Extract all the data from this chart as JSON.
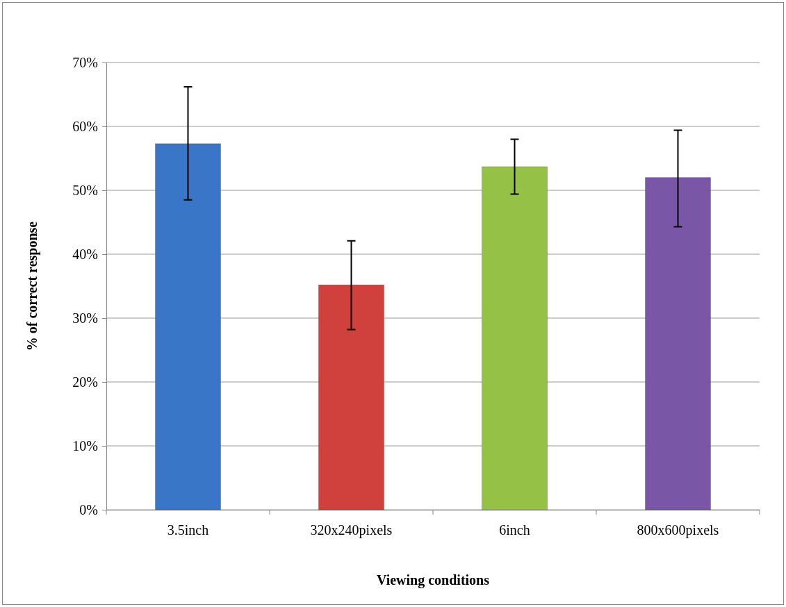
{
  "chart_data": {
    "type": "bar",
    "xlabel": "Viewing conditions",
    "ylabel": "% of correct response",
    "categories": [
      "3.5inch",
      "320x240pixels",
      "6inch",
      "800x600pixels"
    ],
    "values": [
      57.3,
      35.2,
      53.7,
      52.0
    ],
    "colors": [
      "#3a76c8",
      "#d0403c",
      "#95c146",
      "#7a56a6"
    ],
    "errors": [
      [
        48.5,
        66.2
      ],
      [
        28.2,
        42.1
      ],
      [
        49.4,
        58.0
      ],
      [
        44.3,
        59.4
      ]
    ],
    "ylim": [
      0,
      70
    ],
    "yticks": [
      {
        "value": 0,
        "label": "0%"
      },
      {
        "value": 10,
        "label": "10%"
      },
      {
        "value": 20,
        "label": "20%"
      },
      {
        "value": 30,
        "label": "30%"
      },
      {
        "value": 40,
        "label": "40%"
      },
      {
        "value": 50,
        "label": "50%"
      },
      {
        "value": 60,
        "label": "60%"
      },
      {
        "value": 70,
        "label": "70%"
      }
    ],
    "grid": "y"
  }
}
